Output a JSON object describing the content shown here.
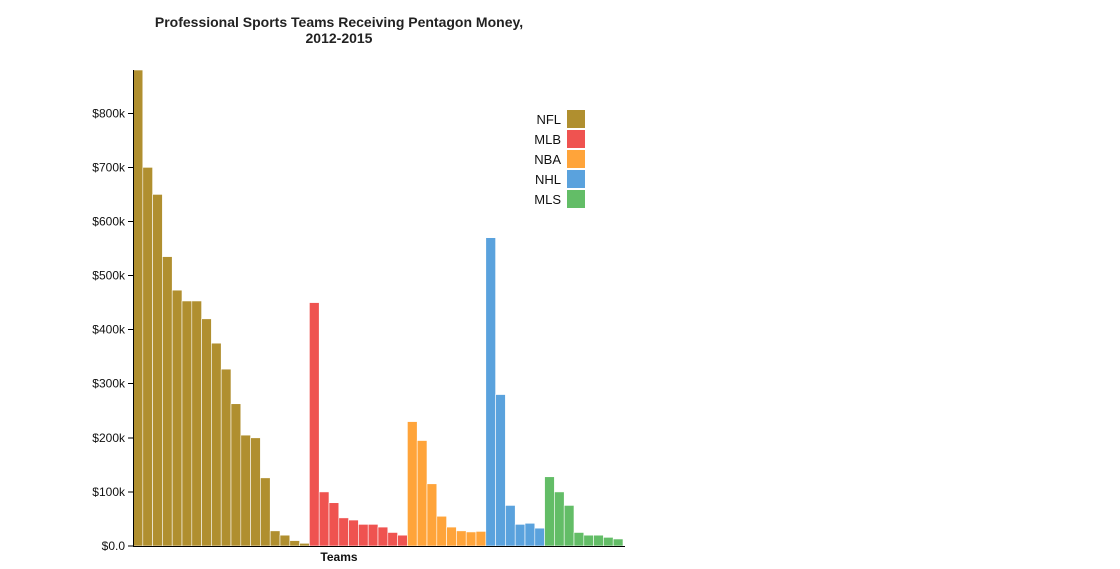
{
  "chart_data": {
    "type": "bar",
    "title": [
      "Professional Sports Teams Receiving Pentagon Money,",
      "2012-2015"
    ],
    "xlabel": "Teams",
    "ylabel": "",
    "ylim": [
      0,
      880000
    ],
    "yticks": [
      0,
      100000,
      200000,
      300000,
      400000,
      500000,
      600000,
      700000,
      800000
    ],
    "ytick_labels": [
      "$0.0",
      "$100k",
      "$200k",
      "$300k",
      "$400k",
      "$500k",
      "$600k",
      "$700k",
      "$800k"
    ],
    "grid": false,
    "legend_position": "top-right",
    "colors": {
      "NFL": "#b08f2f",
      "MLB": "#ef5350",
      "NBA": "#ffa43a",
      "NHL": "#5aa2dd",
      "MLS": "#63bd67"
    },
    "series": [
      {
        "name": "NFL",
        "values": [
          880000,
          700000,
          650000,
          535000,
          473000,
          453000,
          453000,
          420000,
          375000,
          327000,
          263000,
          205000,
          200000,
          126000,
          28000,
          20000,
          10000,
          5000
        ]
      },
      {
        "name": "MLB",
        "values": [
          450000,
          100000,
          80000,
          52000,
          48000,
          40000,
          40000,
          35000,
          25000,
          20000
        ]
      },
      {
        "name": "NBA",
        "values": [
          230000,
          195000,
          115000,
          55000,
          35000,
          28000,
          26000,
          27000
        ]
      },
      {
        "name": "NHL",
        "values": [
          570000,
          280000,
          75000,
          40000,
          42000,
          33000
        ]
      },
      {
        "name": "MLS",
        "values": [
          128000,
          100000,
          75000,
          25000,
          20000,
          20000,
          16000,
          13000
        ]
      }
    ]
  }
}
